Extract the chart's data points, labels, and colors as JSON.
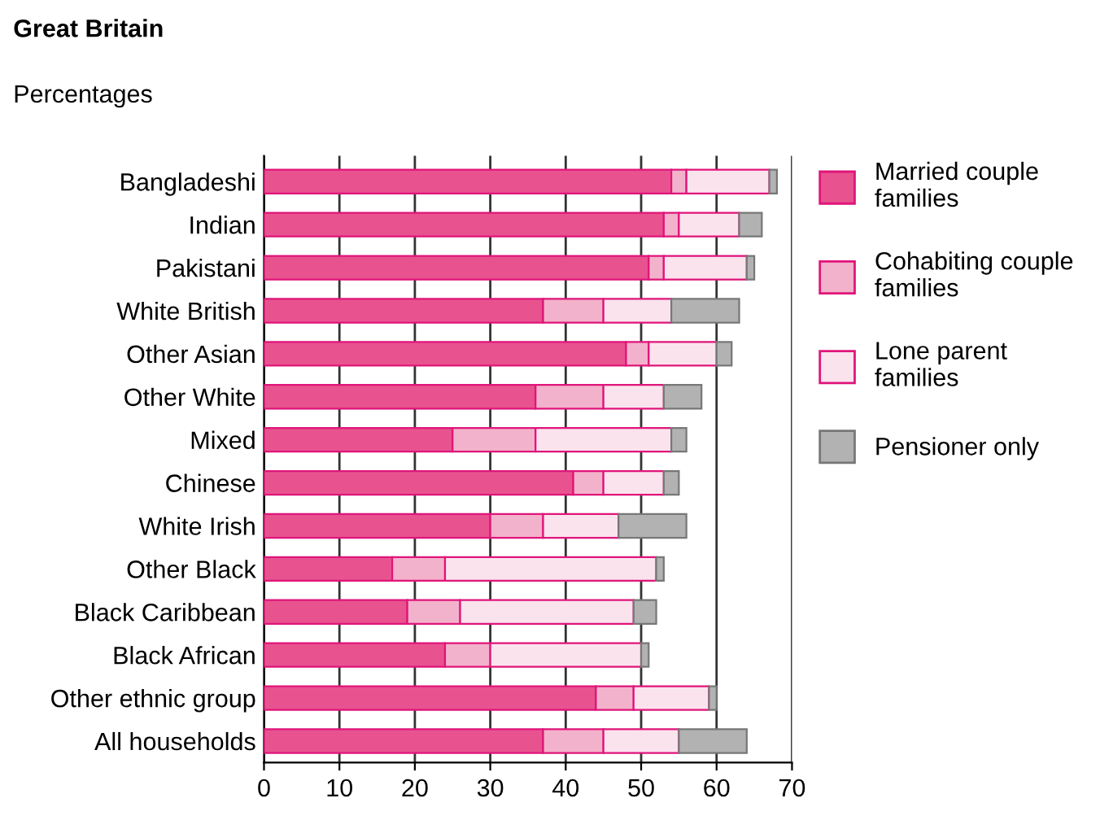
{
  "chart_data": {
    "type": "bar",
    "orientation": "horizontal",
    "stacked": true,
    "title": "Great Britain",
    "subtitle": "Percentages",
    "categories": [
      "Bangladeshi",
      "Indian",
      "Pakistani",
      "White British",
      "Other Asian",
      "Other White",
      "Mixed",
      "Chinese",
      "White Irish",
      "Other Black",
      "Black Caribbean",
      "Black African",
      "Other ethnic group",
      "All households"
    ],
    "series": [
      {
        "name": "Married couple families",
        "color": "#e8538f",
        "values": [
          54,
          53,
          51,
          37,
          48,
          36,
          25,
          41,
          30,
          17,
          19,
          24,
          44,
          37
        ]
      },
      {
        "name": "Cohabiting couple families",
        "color": "#f3b2cb",
        "values": [
          2,
          2,
          2,
          8,
          3,
          9,
          11,
          4,
          7,
          7,
          7,
          6,
          5,
          8
        ]
      },
      {
        "name": "Lone parent families",
        "color": "#fbe3ee",
        "values": [
          11,
          8,
          11,
          9,
          9,
          8,
          18,
          8,
          10,
          28,
          23,
          20,
          10,
          10
        ]
      },
      {
        "name": "Pensioner only",
        "color": "#b2b2b2",
        "values": [
          1,
          3,
          1,
          9,
          2,
          5,
          2,
          2,
          9,
          1,
          3,
          1,
          1,
          9
        ]
      }
    ],
    "xlim": [
      0,
      70
    ],
    "xticks": [
      0,
      10,
      20,
      30,
      40,
      50,
      60,
      70
    ],
    "grid": "x",
    "legend": "right"
  }
}
